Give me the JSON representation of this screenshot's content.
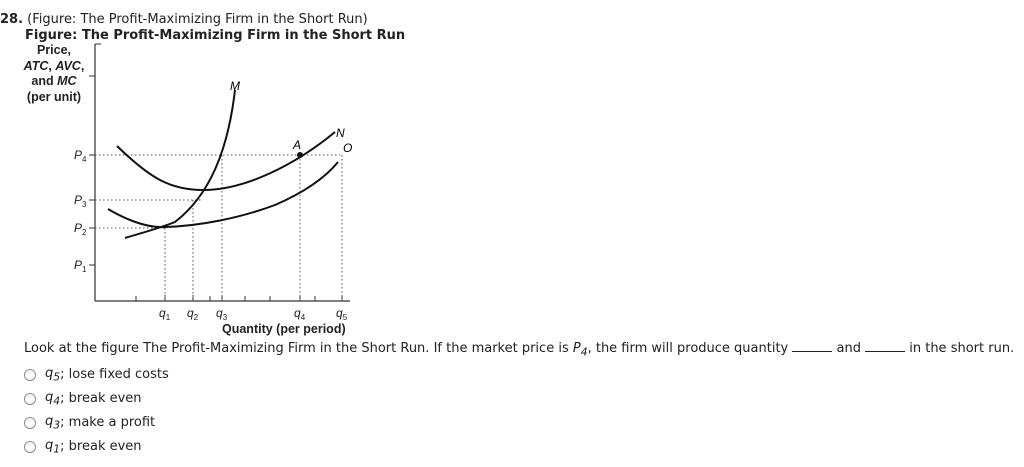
{
  "question": {
    "number": "28.",
    "header": "(Figure: The Profit-Maximizing Firm in the Short Run)",
    "figure_title": "Figure: The Profit-Maximizing Firm in the Short Run",
    "stem_before": "Look at the figure The Profit-Maximizing Firm in the Short Run. If the market price is ",
    "stem_price": "P",
    "stem_price_sub": "4",
    "stem_after": ", the firm will produce quantity ",
    "stem_and": " and ",
    "stem_end": " in the short run."
  },
  "chart_data": {
    "type": "line",
    "ylabel_lines": [
      "Price,",
      "ATC, AVC,",
      "and MC",
      "(per unit)"
    ],
    "ylabel_italic_parts": [
      "ATC",
      "AVC",
      "MC"
    ],
    "xlabel": "Quantity (per period)",
    "y_ticks": [
      {
        "name": "P",
        "sub": "4"
      },
      {
        "name": "P",
        "sub": "3"
      },
      {
        "name": "P",
        "sub": "2"
      },
      {
        "name": "P",
        "sub": "1"
      }
    ],
    "x_ticks": [
      {
        "name": "q",
        "sub": "1"
      },
      {
        "name": "q",
        "sub": "2"
      },
      {
        "name": "q",
        "sub": "3"
      },
      {
        "name": "q",
        "sub": "4"
      },
      {
        "name": "q",
        "sub": "5"
      }
    ],
    "curve_labels": {
      "mc": "M",
      "atc": "N",
      "avc": "O",
      "point": "A"
    }
  },
  "options": [
    {
      "q": "q",
      "sub": "5",
      "text": "; lose fixed costs"
    },
    {
      "q": "q",
      "sub": "4",
      "text": "; break even"
    },
    {
      "q": "q",
      "sub": "3",
      "text": "; make a profit"
    },
    {
      "q": "q",
      "sub": "1",
      "text": "; break even"
    }
  ]
}
